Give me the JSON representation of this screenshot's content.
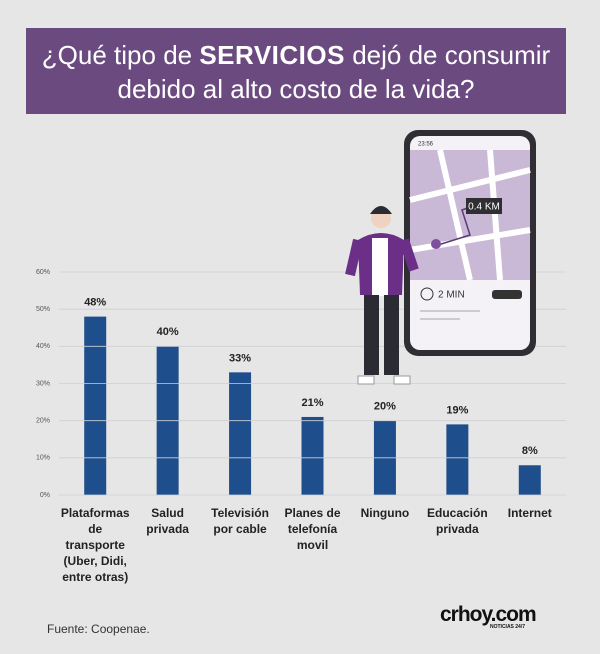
{
  "chart_data": {
    "type": "bar",
    "title": [
      "¿Qué tipo de ",
      "SERVICIOS",
      " dejó de consumir debido al alto costo de la vida?"
    ],
    "categories": [
      "Plataformas de transporte (Uber, Didi, entre otras)",
      "Salud privada",
      "Televisión por cable",
      "Planes de telefonía movil",
      "Ninguno",
      "Educación privada",
      "Internet"
    ],
    "values": [
      48,
      40,
      33,
      21,
      20,
      19,
      8
    ],
    "value_labels": [
      "48%",
      "40%",
      "33%",
      "21%",
      "20%",
      "19%",
      "8%"
    ],
    "color": "#1f4e8c",
    "ylim": [
      0,
      60
    ],
    "yticks": [
      {
        "value": 0,
        "label": "0%"
      },
      {
        "value": 10,
        "label": "10%"
      },
      {
        "value": 20,
        "label": "20%"
      },
      {
        "value": 30,
        "label": "30%"
      },
      {
        "value": 40,
        "label": "40%"
      },
      {
        "value": 50,
        "label": "50%"
      },
      {
        "value": 60,
        "label": "60%"
      }
    ],
    "grid": true,
    "source": "Fuente: Coopenae.",
    "logo": {
      "name": "crhoy.com",
      "tagline": "NOTICIAS 24/7"
    },
    "illustration": {
      "time": "23:56",
      "distance": "0.4 KM",
      "eta": "2 MIN"
    }
  }
}
